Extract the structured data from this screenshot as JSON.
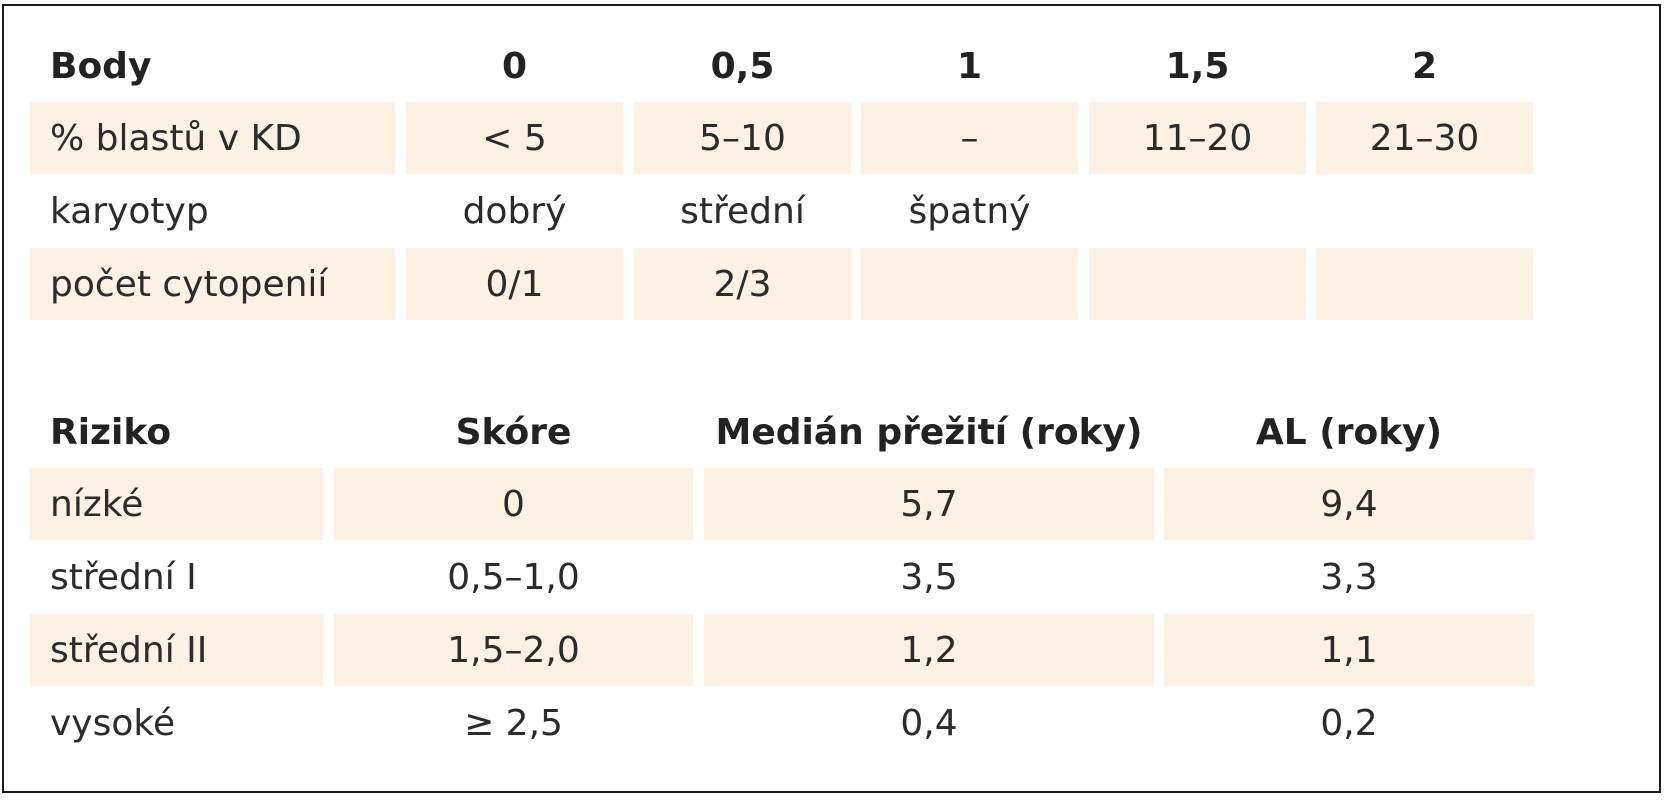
{
  "table1": {
    "header": [
      "Body",
      "0",
      "0,5",
      "1",
      "1,5",
      "2"
    ],
    "rows": [
      [
        "% blastů v KD",
        "< 5",
        "5–10",
        "–",
        "11–20",
        "21–30"
      ],
      [
        "karyotyp",
        "dobrý",
        "střední",
        "špatný",
        "",
        ""
      ],
      [
        "počet cytopenií",
        "0/1",
        "2/3",
        "",
        "",
        ""
      ]
    ]
  },
  "table2": {
    "header": [
      "Riziko",
      "Skóre",
      "Medián přežití (roky)",
      "AL (roky)"
    ],
    "rows": [
      [
        "nízké",
        "0",
        "5,7",
        "9,4"
      ],
      [
        "střední I",
        "0,5–1,0",
        "3,5",
        "3,3"
      ],
      [
        "střední II",
        "1,5–2,0",
        "1,2",
        "1,1"
      ],
      [
        "vysoké",
        "≥ 2,5",
        "0,4",
        "0,2"
      ]
    ]
  },
  "colors": {
    "row_shade": "#fdf1e4",
    "border": "#1c1c1c",
    "text": "#2b2b2b"
  }
}
